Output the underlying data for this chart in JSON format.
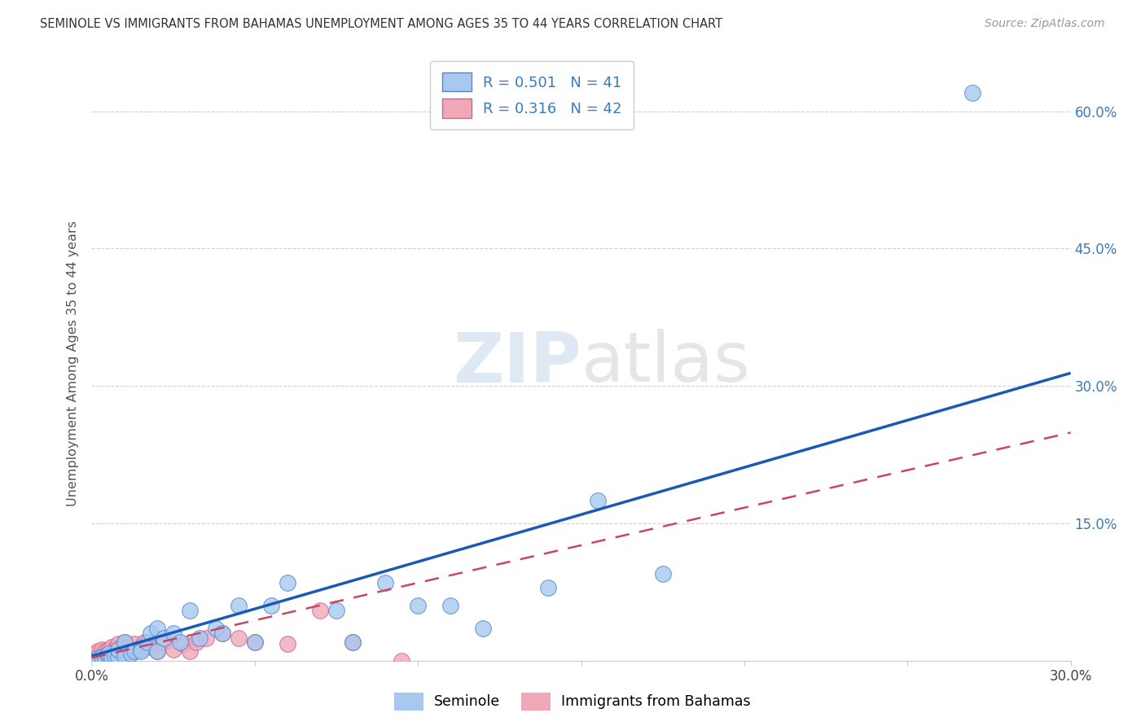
{
  "title": "SEMINOLE VS IMMIGRANTS FROM BAHAMAS UNEMPLOYMENT AMONG AGES 35 TO 44 YEARS CORRELATION CHART",
  "source": "Source: ZipAtlas.com",
  "ylabel": "Unemployment Among Ages 35 to 44 years",
  "xlim": [
    0,
    0.3
  ],
  "ylim": [
    0,
    0.65
  ],
  "x_ticks": [
    0.0,
    0.05,
    0.1,
    0.15,
    0.2,
    0.25,
    0.3
  ],
  "y_ticks": [
    0.0,
    0.15,
    0.3,
    0.45,
    0.6
  ],
  "grid_color": "#d0d0d0",
  "background_color": "#ffffff",
  "seminole_color": "#a8c8f0",
  "bahamas_color": "#f0a8b8",
  "seminole_edge": "#5588cc",
  "bahamas_edge": "#cc6688",
  "line_seminole_color": "#1a5ab5",
  "line_bahamas_color": "#cc4466",
  "R_seminole": 0.501,
  "N_seminole": 41,
  "R_bahamas": 0.316,
  "N_bahamas": 42,
  "seminole_x": [
    0.0,
    0.002,
    0.003,
    0.004,
    0.005,
    0.005,
    0.006,
    0.007,
    0.008,
    0.008,
    0.01,
    0.01,
    0.012,
    0.013,
    0.015,
    0.015,
    0.017,
    0.018,
    0.02,
    0.02,
    0.022,
    0.025,
    0.027,
    0.03,
    0.033,
    0.038,
    0.04,
    0.045,
    0.05,
    0.055,
    0.06,
    0.075,
    0.08,
    0.09,
    0.1,
    0.11,
    0.12,
    0.14,
    0.155,
    0.175,
    0.27
  ],
  "seminole_y": [
    0.0,
    0.002,
    0.004,
    0.003,
    0.005,
    0.008,
    0.003,
    0.005,
    0.004,
    0.012,
    0.005,
    0.02,
    0.008,
    0.01,
    0.012,
    0.01,
    0.02,
    0.03,
    0.01,
    0.035,
    0.025,
    0.03,
    0.02,
    0.055,
    0.025,
    0.035,
    0.03,
    0.06,
    0.02,
    0.06,
    0.085,
    0.055,
    0.02,
    0.085,
    0.06,
    0.06,
    0.035,
    0.08,
    0.175,
    0.095,
    0.62
  ],
  "bahamas_x": [
    0.0,
    0.0,
    0.0,
    0.001,
    0.001,
    0.002,
    0.002,
    0.003,
    0.003,
    0.004,
    0.004,
    0.005,
    0.005,
    0.006,
    0.006,
    0.007,
    0.007,
    0.008,
    0.008,
    0.009,
    0.01,
    0.01,
    0.011,
    0.012,
    0.013,
    0.015,
    0.016,
    0.018,
    0.02,
    0.022,
    0.025,
    0.028,
    0.03,
    0.032,
    0.035,
    0.04,
    0.045,
    0.05,
    0.06,
    0.07,
    0.08,
    0.095
  ],
  "bahamas_y": [
    0.0,
    0.002,
    0.005,
    0.002,
    0.008,
    0.003,
    0.01,
    0.005,
    0.012,
    0.004,
    0.01,
    0.003,
    0.012,
    0.008,
    0.015,
    0.005,
    0.012,
    0.01,
    0.018,
    0.008,
    0.012,
    0.02,
    0.015,
    0.01,
    0.018,
    0.015,
    0.02,
    0.015,
    0.01,
    0.02,
    0.012,
    0.018,
    0.01,
    0.02,
    0.025,
    0.03,
    0.025,
    0.02,
    0.018,
    0.055,
    0.02,
    0.0
  ],
  "line_seminole_slope": 1.03,
  "line_seminole_intercept": 0.005,
  "line_bahamas_slope": 0.82,
  "line_bahamas_intercept": 0.003
}
